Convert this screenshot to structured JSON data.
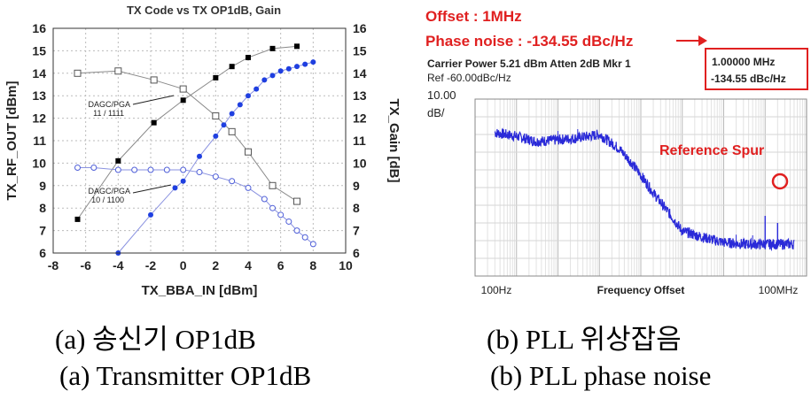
{
  "chart_data": [
    {
      "type": "line",
      "title": "TX Code vs TX OP1dB, Gain",
      "xlabel": "TX_BBA_IN [dBm]",
      "ylabel": "TX_RF_OUT [dBm]",
      "ylabel_right": "TX_Gain [dB]",
      "xlim": [
        -8,
        10
      ],
      "ylim": [
        6,
        16
      ],
      "xticks": [
        -8,
        -6,
        -4,
        -2,
        0,
        2,
        4,
        6,
        8,
        10
      ],
      "yticks": [
        6,
        7,
        8,
        9,
        10,
        11,
        12,
        13,
        14,
        15,
        16
      ],
      "grid": true,
      "annotations": [
        {
          "line1": "DAGC/PGA",
          "line2": "11 / 1111"
        },
        {
          "line1": "DAGC/PGA",
          "line2": "10 / 1100"
        }
      ],
      "series": [
        {
          "axis": "left",
          "marker": "filled-square",
          "color": "#000000",
          "x": [
            -6.5,
            -4,
            -1.8,
            0,
            2,
            3,
            4,
            5.5,
            7
          ],
          "y": [
            7.5,
            10.1,
            11.8,
            12.8,
            13.8,
            14.3,
            14.7,
            15.1,
            15.2
          ]
        },
        {
          "axis": "right",
          "marker": "open-square",
          "color": "#555555",
          "x": [
            -6.5,
            -4,
            -1.8,
            0,
            2,
            3,
            4,
            5.5,
            7
          ],
          "y": [
            14.0,
            14.1,
            13.7,
            13.3,
            12.1,
            11.4,
            10.5,
            9.0,
            8.3
          ]
        },
        {
          "axis": "left",
          "marker": "filled-circle",
          "color": "#1f3fe0",
          "x": [
            -4,
            -2,
            -0.5,
            0,
            1,
            2,
            2.5,
            3,
            3.5,
            4,
            4.5,
            5,
            5.5,
            6,
            6.5,
            7,
            7.5,
            8
          ],
          "y": [
            6.0,
            7.7,
            8.9,
            9.2,
            10.3,
            11.2,
            11.7,
            12.2,
            12.6,
            13.0,
            13.3,
            13.7,
            13.9,
            14.1,
            14.2,
            14.3,
            14.4,
            14.5
          ]
        },
        {
          "axis": "right",
          "marker": "open-circle",
          "color": "#4f5fd8",
          "x": [
            -6.5,
            -5.5,
            -4,
            -3,
            -2,
            -1,
            0,
            1,
            2,
            3,
            4,
            5,
            5.5,
            6,
            6.5,
            7,
            7.5,
            8
          ],
          "y": [
            9.8,
            9.8,
            9.7,
            9.7,
            9.7,
            9.7,
            9.7,
            9.6,
            9.4,
            9.2,
            8.9,
            8.4,
            8.0,
            7.7,
            7.4,
            7.0,
            6.7,
            6.4
          ]
        }
      ]
    },
    {
      "type": "line",
      "annotations": {
        "offset": "Offset : 1MHz",
        "phase_noise": "Phase noise : -134.55 dBc/Hz",
        "carrier": "Carrier Power 5.21 dBm Atten 2dB Mkr 1",
        "ref": "Ref -60.00dBc/Hz",
        "scale_value": "10.00",
        "scale_unit": "dB/",
        "marker_box_line1": "1.00000 MHz",
        "marker_box_line2": "-134.55 dBc/Hz",
        "spur_label": "Reference Spur"
      },
      "xlabel": "Frequency Offset",
      "x_tick_labels": [
        "100Hz",
        "100MHz"
      ],
      "x_scale": "log",
      "xlim": [
        10,
        1000000000
      ],
      "ylim": [
        -160,
        -60
      ],
      "accent_color": "#e02020",
      "trace_color": "#2a2ad8",
      "series": [
        {
          "name": "phase noise",
          "x": [
            30,
            100,
            300,
            1000,
            3000,
            10000,
            30000,
            60000,
            100000,
            200000,
            500000,
            1000000,
            3000000,
            10000000,
            30000000,
            100000000,
            200000000,
            500000000
          ],
          "y": [
            -79,
            -81,
            -84,
            -83,
            -82,
            -80,
            -88,
            -96,
            -103,
            -113,
            -125,
            -134.55,
            -138,
            -141,
            -142,
            -142,
            -142,
            -142
          ]
        }
      ],
      "spurs": [
        {
          "x": 100000000,
          "y": -126
        },
        {
          "x": 200000000,
          "y": -130
        }
      ]
    }
  ],
  "captions": {
    "a_korean": "(a) 송신기 OP1dB",
    "b_korean": "(b) PLL 위상잡음",
    "a_english": "(a) Transmitter OP1dB",
    "b_english": "(b) PLL phase noise"
  }
}
